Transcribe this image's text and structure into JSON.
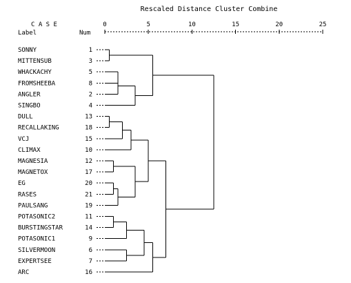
{
  "chart_data": {
    "type": "dendrogram",
    "title": "Rescaled Distance Cluster Combine",
    "header": {
      "case": "C A S E",
      "label": "Label",
      "num": "Num"
    },
    "x_ticks": [
      0,
      5,
      10,
      15,
      20,
      25
    ],
    "x_range": [
      0,
      25
    ],
    "leaves": [
      {
        "label": "SONNY",
        "num": 1
      },
      {
        "label": "MITTENSUB",
        "num": 3
      },
      {
        "label": "WHACKACHY",
        "num": 5
      },
      {
        "label": "FROMSHEEBA",
        "num": 8
      },
      {
        "label": "ANGLER",
        "num": 2
      },
      {
        "label": "SINGBO",
        "num": 4
      },
      {
        "label": "DULL",
        "num": 13
      },
      {
        "label": "RECALLAKING",
        "num": 18
      },
      {
        "label": "VCJ",
        "num": 15
      },
      {
        "label": "CLIMAX",
        "num": 10
      },
      {
        "label": "MAGNESIA",
        "num": 12
      },
      {
        "label": "MAGNETOX",
        "num": 17
      },
      {
        "label": "EG",
        "num": 20
      },
      {
        "label": "RASES",
        "num": 21
      },
      {
        "label": "PAULSANG",
        "num": 19
      },
      {
        "label": "POTASONIC2",
        "num": 11
      },
      {
        "label": "BURSTINGSTAR",
        "num": 14
      },
      {
        "label": "POTASONIC1",
        "num": 9
      },
      {
        "label": "SILVERMOON",
        "num": 6
      },
      {
        "label": "EXPERTSEE",
        "num": 7
      },
      {
        "label": "ARC",
        "num": 16
      }
    ],
    "merges": [
      {
        "a": "L0",
        "b": "L1",
        "d": 0.5
      },
      {
        "a": "L2",
        "b": "L3",
        "d": 1.5
      },
      {
        "a": "M1",
        "b": "L4",
        "d": 1.5
      },
      {
        "a": "M2",
        "b": "L5",
        "d": 3.5
      },
      {
        "a": "M0",
        "b": "M3",
        "d": 5.5
      },
      {
        "a": "L6",
        "b": "L7",
        "d": 0.5
      },
      {
        "a": "M5",
        "b": "L8",
        "d": 2.0
      },
      {
        "a": "M6",
        "b": "L9",
        "d": 3.0
      },
      {
        "a": "L10",
        "b": "L11",
        "d": 1.0
      },
      {
        "a": "L12",
        "b": "L13",
        "d": 1.0
      },
      {
        "a": "M9",
        "b": "L14",
        "d": 1.5
      },
      {
        "a": "M8",
        "b": "M10",
        "d": 3.5
      },
      {
        "a": "M7",
        "b": "M11",
        "d": 5.0
      },
      {
        "a": "L15",
        "b": "L16",
        "d": 1.0
      },
      {
        "a": "M13",
        "b": "L17",
        "d": 2.5
      },
      {
        "a": "L18",
        "b": "L19",
        "d": 2.5
      },
      {
        "a": "M14",
        "b": "M15",
        "d": 4.5
      },
      {
        "a": "M16",
        "b": "L20",
        "d": 5.5
      },
      {
        "a": "M12",
        "b": "M17",
        "d": 7.0
      },
      {
        "a": "M4",
        "b": "M18",
        "d": 12.5
      }
    ]
  }
}
